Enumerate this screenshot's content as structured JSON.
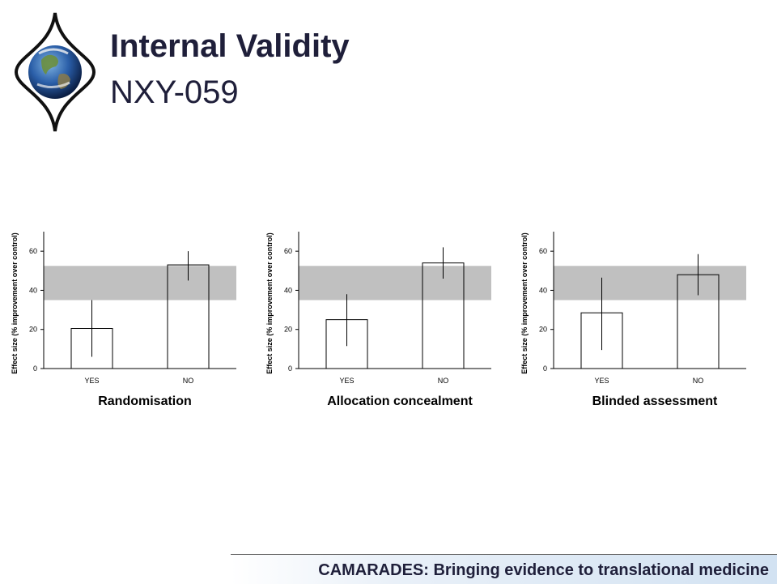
{
  "title": "Internal Validity",
  "subtitle": "NXY-059",
  "footer": {
    "text": "CAMARADES: Bringing evidence to translational medicine"
  },
  "colors": {
    "band": "#c0c0c0",
    "text": "#1f1f3a"
  },
  "chart_data": [
    {
      "type": "bar",
      "title": "Randomisation",
      "ylabel": "Effect size (% improvement over control)",
      "categories": [
        "YES",
        "NO"
      ],
      "values": [
        20.5,
        53
      ],
      "error_low": [
        6,
        45
      ],
      "error_high": [
        35,
        60
      ],
      "yticks": [
        0,
        20,
        40,
        60
      ],
      "ylim": [
        0,
        70
      ],
      "reference_band": [
        35,
        52.5
      ]
    },
    {
      "type": "bar",
      "title": "Allocation concealment",
      "ylabel": "Effect size (% improvement over control)",
      "categories": [
        "YES",
        "NO"
      ],
      "values": [
        25,
        54
      ],
      "error_low": [
        11.5,
        46
      ],
      "error_high": [
        38,
        62
      ],
      "yticks": [
        0,
        20,
        40,
        60
      ],
      "ylim": [
        0,
        70
      ],
      "reference_band": [
        35,
        52.5
      ]
    },
    {
      "type": "bar",
      "title": "Blinded assessment",
      "ylabel": "Effect size (% improvement over control)",
      "categories": [
        "YES",
        "NO"
      ],
      "values": [
        28.5,
        48
      ],
      "error_low": [
        9.5,
        37.5
      ],
      "error_high": [
        46.5,
        58.5
      ],
      "yticks": [
        0,
        20,
        40,
        60
      ],
      "ylim": [
        0,
        70
      ],
      "reference_band": [
        35,
        52.5
      ]
    }
  ]
}
